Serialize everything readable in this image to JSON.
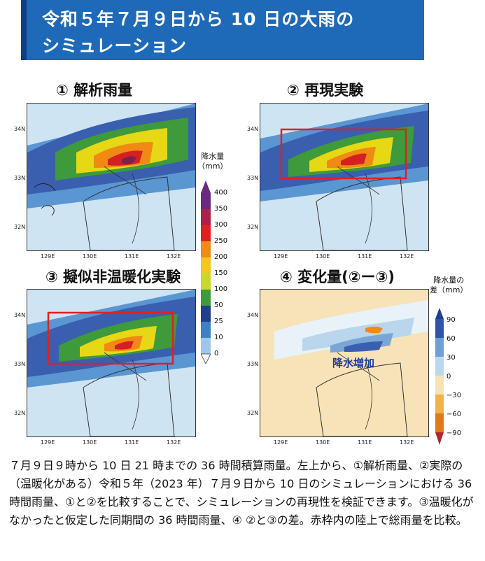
{
  "header": {
    "title_line1": "令和５年７月９日から 10 日の大雨の",
    "title_line2": "シミュレーション"
  },
  "panels": [
    {
      "title": "① 解析雨量"
    },
    {
      "title": "② 再現実験"
    },
    {
      "title": "③ 擬似非温暖化実験"
    },
    {
      "title": "④ 変化量(②ー③)"
    }
  ],
  "axes": {
    "lat_labels": [
      "34N",
      "33N",
      "32N"
    ],
    "lon_labels": [
      "129E",
      "130E",
      "131E",
      "132E"
    ]
  },
  "precip_legend": {
    "title_line1": "降水量",
    "title_line2": "（mm）",
    "levels": [
      "400",
      "350",
      "300",
      "250",
      "200",
      "150",
      "100",
      "50",
      "25",
      "10",
      "0"
    ]
  },
  "diff_legend": {
    "title_line1": "降水量の",
    "title_line2": "差（mm）",
    "levels": [
      "90",
      "60",
      "30",
      "0",
      "−30",
      "−60",
      "−90"
    ]
  },
  "annotation": "降水増加",
  "colors": {
    "banner": "#1e6ab8",
    "box": "#e02020",
    "band_deep": "#1f3f8f",
    "band_blue": "#3f7fc6",
    "band_green": "#3e9a3a",
    "band_yellow": "#e6d814",
    "band_orange": "#f08a14",
    "band_red": "#d42020",
    "diff_bg": "#f8e3b8"
  },
  "caption": {
    "p1": "７月９日９時から 10 日 21 時までの 36 時間積算雨量。左上から、①解析雨量、②実際の（温暖化がある）令和５年（2023 年）７月９日から 10 日のシミュレーションにおける 36 時間雨量、①と②を比較することで、シミュレーションの再現性を検証できます。③温暖化がなかったと仮定した同期間の 36 時間雨量、④ ②と③の差。赤枠内の陸上で総雨量を比較。"
  }
}
